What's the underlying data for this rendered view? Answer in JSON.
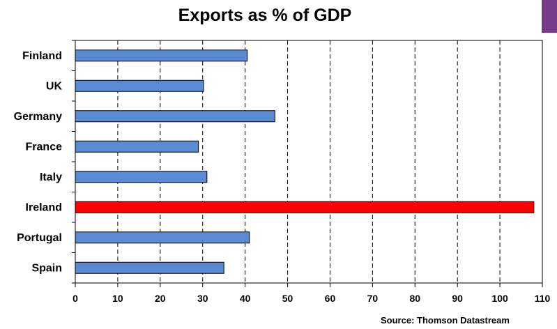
{
  "chart_data": {
    "type": "bar",
    "orientation": "horizontal",
    "title": "Exports as % of GDP",
    "categories": [
      "Finland",
      "UK",
      "Germany",
      "France",
      "Italy",
      "Ireland",
      "Portugal",
      "Spain"
    ],
    "values": [
      40.5,
      30.2,
      47,
      29,
      31,
      108,
      41,
      35
    ],
    "bar_colors": [
      "#5a8ad1",
      "#5a8ad1",
      "#5a8ad1",
      "#5a8ad1",
      "#5a8ad1",
      "#ff0000",
      "#5a8ad1",
      "#5a8ad1"
    ],
    "x_ticks": [
      "0",
      "10",
      "20",
      "30",
      "40",
      "50",
      "60",
      "70",
      "80",
      "90",
      "100",
      "110"
    ],
    "xlim": [
      0,
      110
    ],
    "xlabel": "",
    "ylabel": "",
    "grid": "vertical dashed",
    "source": "Source: Thomson Datastream"
  },
  "colors": {
    "default_bar": "#5a8ad1",
    "highlight_bar": "#ff0000",
    "accent": "#7a3a8c"
  }
}
